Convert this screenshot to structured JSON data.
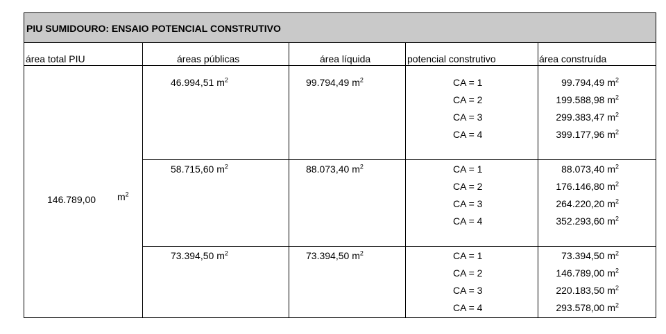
{
  "title": "PIU SUMIDOURO: ENSAIO POTENCIAL CONSTRUTIVO",
  "headers": {
    "area_total": "área total PIU",
    "areas_publicas": "áreas públicas",
    "area_liquida": "área líquida",
    "potencial": "potencial construtivo",
    "area_construida": "área construída"
  },
  "unit": "m",
  "unit_sup": "2",
  "area_total": "146.789,00",
  "groups": [
    {
      "area_publica": "46.994,51",
      "area_liquida": "99.794,49",
      "rows": [
        {
          "ca": "CA = 1",
          "area": "99.794,49"
        },
        {
          "ca": "CA = 2",
          "area": "199.588,98"
        },
        {
          "ca": "CA = 3",
          "area": "299.383,47"
        },
        {
          "ca": "CA = 4",
          "area": "399.177,96"
        }
      ]
    },
    {
      "area_publica": "58.715,60",
      "area_liquida": "88.073,40",
      "rows": [
        {
          "ca": "CA = 1",
          "area": "88.073,40"
        },
        {
          "ca": "CA = 2",
          "area": "176.146,80"
        },
        {
          "ca": "CA = 3",
          "area": "264.220,20"
        },
        {
          "ca": "CA = 4",
          "area": "352.293,60"
        }
      ]
    },
    {
      "area_publica": "73.394,50",
      "area_liquida": "73.394,50",
      "rows": [
        {
          "ca": "CA = 1",
          "area": "73.394,50"
        },
        {
          "ca": "CA = 2",
          "area": "146.789,00"
        },
        {
          "ca": "CA = 3",
          "area": "220.183,50"
        },
        {
          "ca": "CA = 4",
          "area": "293.578,00"
        }
      ]
    }
  ]
}
